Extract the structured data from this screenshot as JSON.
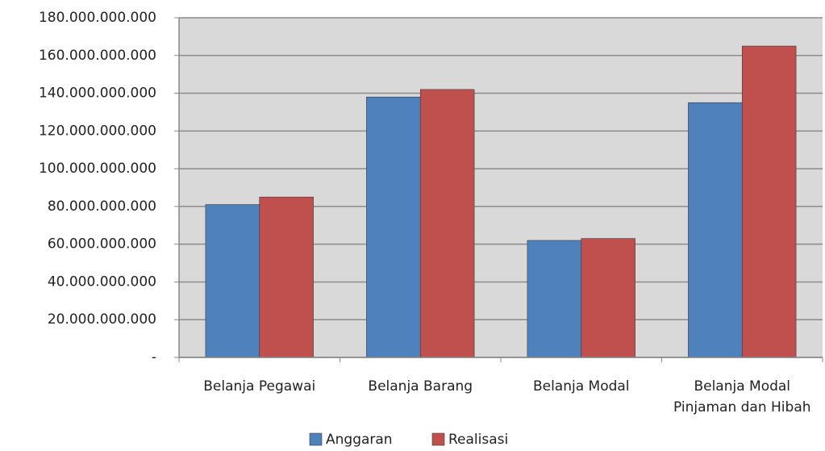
{
  "chart_data": {
    "type": "bar",
    "categories": [
      "Belanja Pegawai",
      "Belanja Barang",
      "Belanja Modal",
      "Belanja Modal Pinjaman dan Hibah"
    ],
    "series": [
      {
        "name": "Anggaran",
        "color": "#4f81bd",
        "values": [
          81000000000,
          138000000000,
          62000000000,
          135000000000
        ]
      },
      {
        "name": "Realisasi",
        "color": "#c0504d",
        "values": [
          85000000000,
          142000000000,
          63000000000,
          165000000000
        ]
      }
    ],
    "ylim": [
      0,
      180000000000
    ],
    "yticks": [
      {
        "value": 0,
        "label": "-"
      },
      {
        "value": 20000000000,
        "label": "20.000.000.000"
      },
      {
        "value": 40000000000,
        "label": "40.000.000.000"
      },
      {
        "value": 60000000000,
        "label": "60.000.000.000"
      },
      {
        "value": 80000000000,
        "label": "80.000.000.000"
      },
      {
        "value": 100000000000,
        "label": "100.000.000.000"
      },
      {
        "value": 120000000000,
        "label": "120.000.000.000"
      },
      {
        "value": 140000000000,
        "label": "140.000.000.000"
      },
      {
        "value": 160000000000,
        "label": "160.000.000.000"
      },
      {
        "value": 180000000000,
        "label": "180.000.000.000"
      }
    ],
    "grid": true,
    "legend": "bottom"
  }
}
